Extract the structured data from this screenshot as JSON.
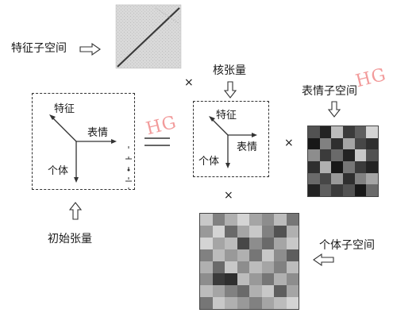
{
  "labels": {
    "feature_subspace": "特征子空间",
    "core_tensor": "核张量",
    "expression_subspace": "表情子空间",
    "individual_subspace": "个体子空间",
    "initial_tensor": "初始张量",
    "feature": "特征",
    "expression": "表情",
    "individual": "个体",
    "core_feature": "特征",
    "core_expression": "表情",
    "core_individual": "个体"
  },
  "operators": {
    "times_1": "×",
    "times_2": "×",
    "times_3": "×",
    "equals": "="
  },
  "watermarks": [
    "HG",
    "HG"
  ],
  "colors": {
    "line": "#333333",
    "watermark": "#f08a8a"
  },
  "expression_mosaic": {
    "rows": 6,
    "cols": 6,
    "levels": [
      0.35,
      0.15,
      0.8,
      0.25,
      0.4,
      0.9,
      0.1,
      0.55,
      0.2,
      0.7,
      0.3,
      0.2,
      0.6,
      0.25,
      0.45,
      0.15,
      0.85,
      0.35,
      0.2,
      0.75,
      0.1,
      0.5,
      0.25,
      0.15,
      0.45,
      0.3,
      0.65,
      0.2,
      0.55,
      0.7,
      0.15,
      0.4,
      0.25,
      0.35,
      0.1,
      0.45
    ]
  },
  "individual_mosaic": {
    "rows": 8,
    "cols": 8,
    "levels": [
      0.85,
      0.55,
      0.75,
      0.9,
      0.7,
      0.6,
      0.8,
      0.5,
      0.65,
      0.9,
      0.45,
      0.7,
      0.85,
      0.55,
      0.35,
      0.75,
      0.9,
      0.7,
      0.8,
      0.3,
      0.6,
      0.45,
      0.7,
      0.85,
      0.55,
      0.8,
      0.65,
      0.75,
      0.5,
      0.85,
      0.6,
      0.4,
      0.75,
      0.45,
      0.85,
      0.6,
      0.8,
      0.7,
      0.55,
      0.8,
      0.6,
      0.25,
      0.2,
      0.8,
      0.65,
      0.5,
      0.75,
      0.6,
      0.8,
      0.7,
      0.55,
      0.45,
      0.75,
      0.85,
      0.4,
      0.7,
      0.5,
      0.85,
      0.75,
      0.65,
      0.55,
      0.7,
      0.8,
      0.9
    ]
  }
}
